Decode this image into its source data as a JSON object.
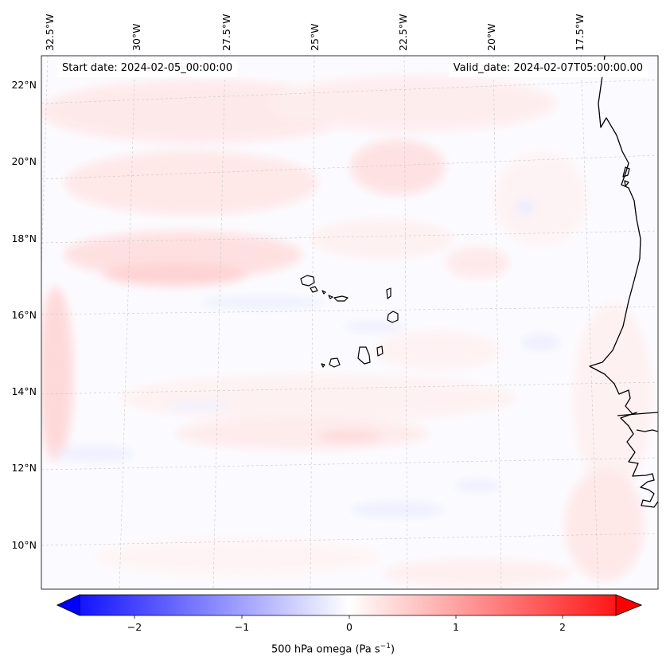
{
  "map": {
    "start_date_text": "Start date: 2024-02-05_00:00:00",
    "valid_date_text": "Valid_date: 2024-02-07T05:00:00.00",
    "lon_labels": [
      "32.5°W",
      "30°W",
      "27.5°W",
      "25°W",
      "22.5°W",
      "20°W",
      "17.5°W"
    ],
    "lat_labels": [
      "22°N",
      "20°N",
      "18°N",
      "16°N",
      "14°N",
      "12°N",
      "10°N"
    ],
    "features": [
      "Cape Verde islands",
      "West African coastline"
    ]
  },
  "colorbar": {
    "ticks": [
      "−2",
      "−1",
      "0",
      "1",
      "2"
    ],
    "label_main": "500 hPa omega (Pa s",
    "label_exp": "−1",
    "label_end": ")",
    "range": [
      -2.6,
      2.6
    ],
    "colormap": "bwr",
    "colors": {
      "neg": "#0000ff",
      "zero": "#ffffff",
      "pos": "#ff0000"
    }
  }
}
